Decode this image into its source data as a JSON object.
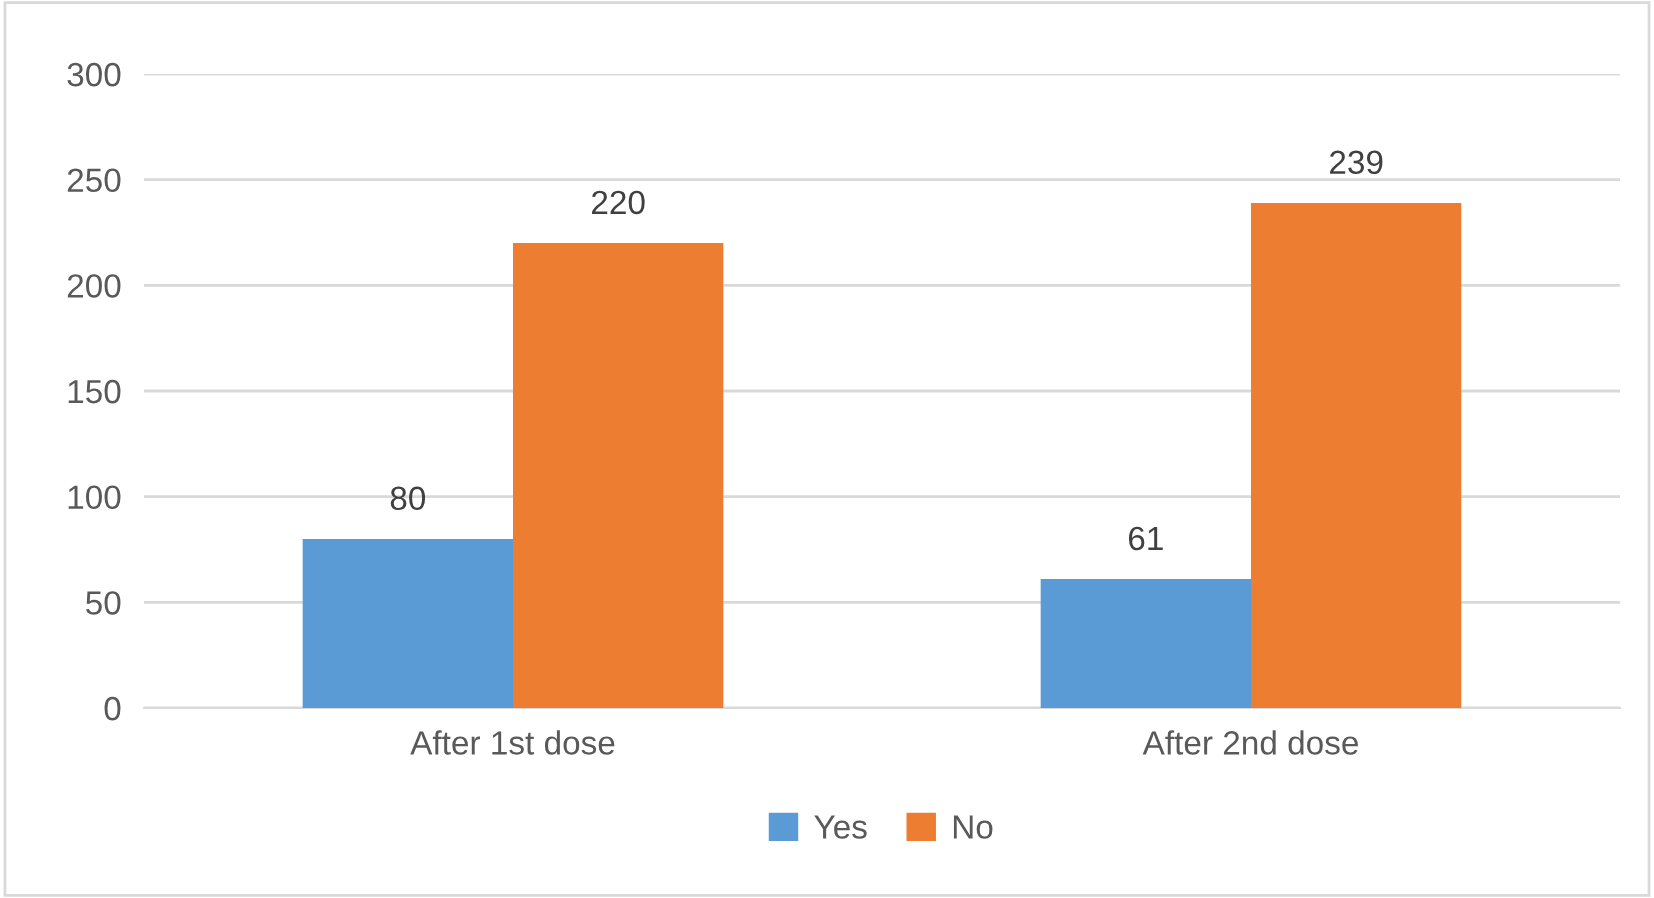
{
  "chart_data": {
    "type": "bar",
    "categories": [
      "After 1st dose",
      "After 2nd dose"
    ],
    "series": [
      {
        "name": "Yes",
        "color": "#5b9bd5",
        "values": [
          80,
          61
        ]
      },
      {
        "name": "No",
        "color": "#ed7d31",
        "values": [
          220,
          239
        ]
      }
    ],
    "ylim": [
      0,
      300
    ],
    "yticks": [
      0,
      50,
      100,
      150,
      200,
      250,
      300
    ],
    "grid": "y",
    "legend": "bottom",
    "data_labels": true
  }
}
